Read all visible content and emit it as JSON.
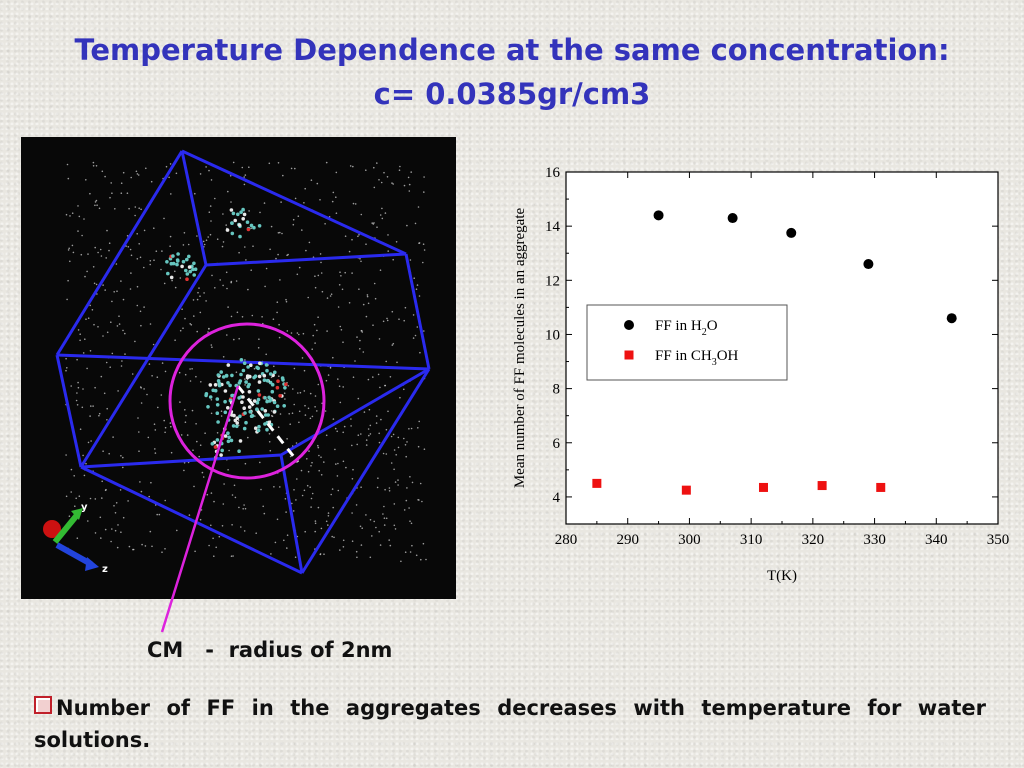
{
  "title": {
    "line1": "Temperature Dependence at the same concentration:",
    "line2": "c= 0.0385gr/cm3"
  },
  "simulation": {
    "axis_labels": {
      "y": "y",
      "z": "z"
    },
    "caption": "CM   -  radius of 2nm",
    "colors": {
      "box": "#2a2aee",
      "circle": "#dd22dd",
      "pointer": "#dd22dd"
    }
  },
  "chart_data": {
    "type": "scatter",
    "xlabel": "T(K)",
    "ylabel": "Mean number of FF molecules in an aggregate",
    "xlim": [
      280,
      350
    ],
    "ylim": [
      3,
      16
    ],
    "x_ticks": [
      280,
      290,
      300,
      310,
      320,
      330,
      340,
      350
    ],
    "y_ticks": [
      4,
      6,
      8,
      10,
      12,
      14,
      16
    ],
    "legend_position": "center-left",
    "series": [
      {
        "name": "FF in H2O",
        "label_parts": [
          "FF in H",
          "2",
          "O"
        ],
        "marker": "circle",
        "color": "#000000",
        "points": [
          [
            295,
            14.4
          ],
          [
            307,
            14.3
          ],
          [
            316.5,
            13.75
          ],
          [
            329,
            12.6
          ],
          [
            342.5,
            10.6
          ]
        ]
      },
      {
        "name": "FF in CH3OH",
        "label_parts": [
          "FF in CH",
          "3",
          "OH"
        ],
        "marker": "square",
        "color": "#ee1111",
        "points": [
          [
            285,
            4.5
          ],
          [
            299.5,
            4.25
          ],
          [
            312,
            4.35
          ],
          [
            321.5,
            4.42
          ],
          [
            331,
            4.35
          ]
        ]
      }
    ]
  },
  "bullet": {
    "text": "Number of FF in the aggregates decreases with temperature for water solutions."
  }
}
